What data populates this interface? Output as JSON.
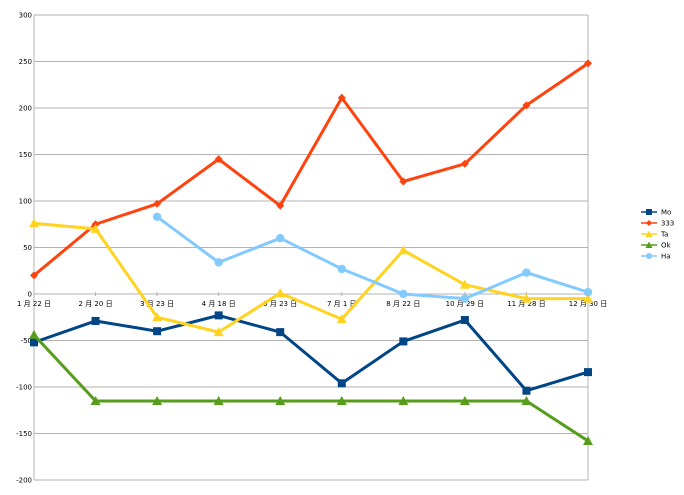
{
  "chart_data": {
    "type": "line",
    "title": "",
    "xlabel": "",
    "ylabel": "",
    "categories": [
      "1 月 22 日",
      "2 月 20 日",
      "3 月 23 日",
      "4 月 18 日",
      "5 月 23 日",
      "7 月 1 日",
      "8 月 22 日",
      "10 月 29 日",
      "11 月 28 日",
      "12 月 30 日"
    ],
    "ylim": [
      -200,
      300
    ],
    "yticks": [
      300,
      250,
      200,
      150,
      100,
      50,
      0,
      -50,
      -100,
      -150,
      -200
    ],
    "grid": "horizontal",
    "legend_position": "right",
    "series": [
      {
        "name": "Mo",
        "color": "#004586",
        "marker": "square",
        "values": [
          -52,
          -29,
          -40,
          -23,
          -41,
          -96,
          -51,
          -28,
          -104,
          -84
        ]
      },
      {
        "name": "333",
        "color": "#ff420e",
        "marker": "diamond",
        "values": [
          20,
          75,
          97,
          145,
          95,
          211,
          121,
          140,
          203,
          248
        ]
      },
      {
        "name": "Ta",
        "color": "#ffd320",
        "marker": "triangle",
        "values": [
          76,
          70,
          -25,
          -41,
          1,
          -27,
          47,
          10,
          -5,
          -5
        ]
      },
      {
        "name": "Ok",
        "color": "#579d1c",
        "marker": "triangle",
        "values": [
          -44,
          -115,
          -115,
          -115,
          -115,
          -115,
          -115,
          -115,
          -115,
          -158
        ]
      },
      {
        "name": "Ha",
        "color": "#83caff",
        "marker": "circle",
        "values": [
          null,
          null,
          83,
          34,
          60,
          27,
          0,
          -5,
          23,
          2
        ]
      }
    ]
  }
}
